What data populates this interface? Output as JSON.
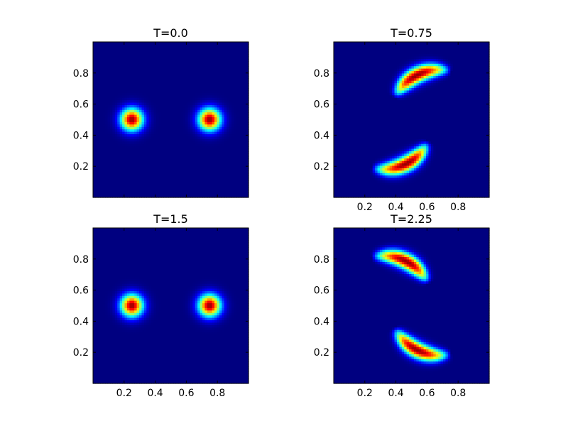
{
  "chart_data": [
    {
      "type": "heatmap",
      "title": "T=0.0",
      "colormap": "jet",
      "xlim": [
        0.0,
        1.0
      ],
      "ylim": [
        0.0,
        1.0
      ],
      "xticks": [
        0.2,
        0.4,
        0.6,
        0.8
      ],
      "yticks": [
        0.2,
        0.4,
        0.6,
        0.8
      ],
      "xtick_labels": [
        "",
        "",
        "",
        ""
      ],
      "ytick_labels": [
        "0.2",
        "0.4",
        "0.6",
        "0.8"
      ],
      "blobs": [
        {
          "shape": "gaussian",
          "cx": 0.25,
          "cy": 0.5,
          "sigma": 0.05,
          "peak": 1.0
        },
        {
          "shape": "gaussian",
          "cx": 0.75,
          "cy": 0.5,
          "sigma": 0.05,
          "peak": 1.0
        }
      ]
    },
    {
      "type": "heatmap",
      "title": "T=0.75",
      "colormap": "jet",
      "xlim": [
        0.0,
        1.0
      ],
      "ylim": [
        0.0,
        1.0
      ],
      "xticks": [
        0.2,
        0.4,
        0.6,
        0.8
      ],
      "yticks": [
        0.2,
        0.4,
        0.6,
        0.8
      ],
      "xtick_labels": [
        "0.2",
        "0.4",
        "0.6",
        "0.8"
      ],
      "ytick_labels": [
        "0.2",
        "0.4",
        "0.6",
        "0.8"
      ],
      "blobs": [
        {
          "shape": "arc",
          "cx": 0.68,
          "cy": 0.5,
          "r": 0.32,
          "theta_start": 80,
          "theta_end": 150,
          "peak_theta": 118,
          "width": 0.035,
          "peak": 1.0
        },
        {
          "shape": "arc",
          "cx": 0.32,
          "cy": 0.5,
          "r": 0.32,
          "theta_start": 260,
          "theta_end": 330,
          "peak_theta": 298,
          "width": 0.035,
          "peak": 1.0
        }
      ]
    },
    {
      "type": "heatmap",
      "title": "T=1.5",
      "colormap": "jet",
      "xlim": [
        0.0,
        1.0
      ],
      "ylim": [
        0.0,
        1.0
      ],
      "xticks": [
        0.2,
        0.4,
        0.6,
        0.8
      ],
      "yticks": [
        0.2,
        0.4,
        0.6,
        0.8
      ],
      "xtick_labels": [
        "0.2",
        "0.4",
        "0.6",
        "0.8"
      ],
      "ytick_labels": [
        "0.2",
        "0.4",
        "0.6",
        "0.8"
      ],
      "blobs": [
        {
          "shape": "gaussian",
          "cx": 0.25,
          "cy": 0.5,
          "sigma": 0.05,
          "peak": 1.0
        },
        {
          "shape": "gaussian",
          "cx": 0.75,
          "cy": 0.5,
          "sigma": 0.05,
          "peak": 1.0
        }
      ]
    },
    {
      "type": "heatmap",
      "title": "T=2.25",
      "colormap": "jet",
      "xlim": [
        0.0,
        1.0
      ],
      "ylim": [
        0.0,
        1.0
      ],
      "xticks": [
        0.2,
        0.4,
        0.6,
        0.8
      ],
      "yticks": [
        0.2,
        0.4,
        0.6,
        0.8
      ],
      "xtick_labels": [
        "0.2",
        "0.4",
        "0.6",
        "0.8"
      ],
      "ytick_labels": [
        "0.2",
        "0.4",
        "0.6",
        "0.8"
      ],
      "blobs": [
        {
          "shape": "arc",
          "cx": 0.32,
          "cy": 0.5,
          "r": 0.32,
          "theta_start": 30,
          "theta_end": 100,
          "peak_theta": 62,
          "width": 0.035,
          "peak": 1.0
        },
        {
          "shape": "arc",
          "cx": 0.68,
          "cy": 0.5,
          "r": 0.32,
          "theta_start": 210,
          "theta_end": 280,
          "peak_theta": 242,
          "width": 0.035,
          "peak": 1.0
        }
      ]
    }
  ]
}
